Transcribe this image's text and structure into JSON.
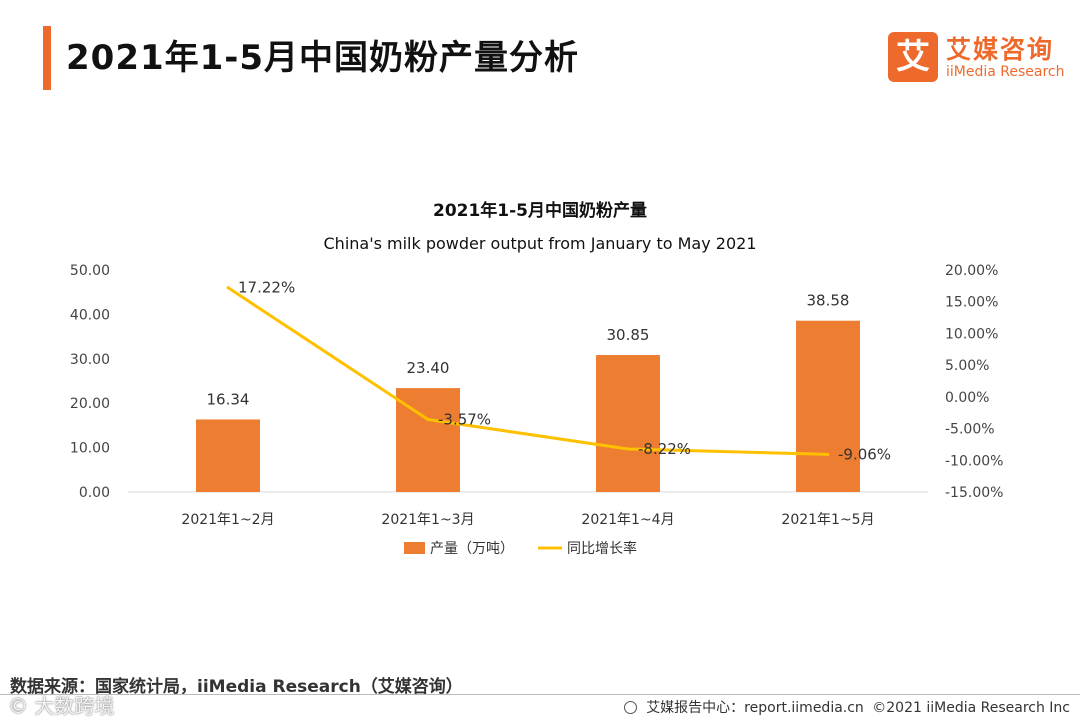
{
  "header": {
    "title": "2021年1-5月中国奶粉产量分析",
    "logo_mark": "艾",
    "logo_cn": "艾媒咨询",
    "logo_en": "iiMedia Research"
  },
  "chart_data": {
    "type": "bar",
    "title": "2021年1-5月中国奶粉产量",
    "subtitle": "China's milk powder output from January to May 2021",
    "categories": [
      "2021年1~2月",
      "2021年1~3月",
      "2021年1~4月",
      "2021年1~5月"
    ],
    "series": [
      {
        "name": "产量（万吨）",
        "type": "bar",
        "axis": "left",
        "color": "#ed7d31",
        "values": [
          16.34,
          23.4,
          30.85,
          38.58
        ],
        "labels": [
          "16.34",
          "23.40",
          "30.85",
          "38.58"
        ]
      },
      {
        "name": "同比增长率",
        "type": "line",
        "axis": "right",
        "color": "#ffc000",
        "values": [
          17.22,
          -3.57,
          -8.22,
          -9.06
        ],
        "labels": [
          "17.22%",
          "-3.57%",
          "-8.22%",
          "-9.06%"
        ]
      }
    ],
    "y_left": {
      "min": 0,
      "max": 50,
      "ticks": [
        "0.00",
        "10.00",
        "20.00",
        "30.00",
        "40.00",
        "50.00"
      ]
    },
    "y_right": {
      "min": -15,
      "max": 20,
      "ticks": [
        "-15.00%",
        "-10.00%",
        "-5.00%",
        "0.00%",
        "5.00%",
        "10.00%",
        "15.00%",
        "20.00%"
      ]
    },
    "grid": false,
    "legend_position": "bottom"
  },
  "footer": {
    "source": "数据来源：国家统计局，iiMedia Research（艾媒咨询）",
    "center_label": "艾媒报告中心：report.iimedia.cn",
    "copyright": "©2021  iiMedia Research  Inc",
    "watermark": "© 大数跨境"
  }
}
